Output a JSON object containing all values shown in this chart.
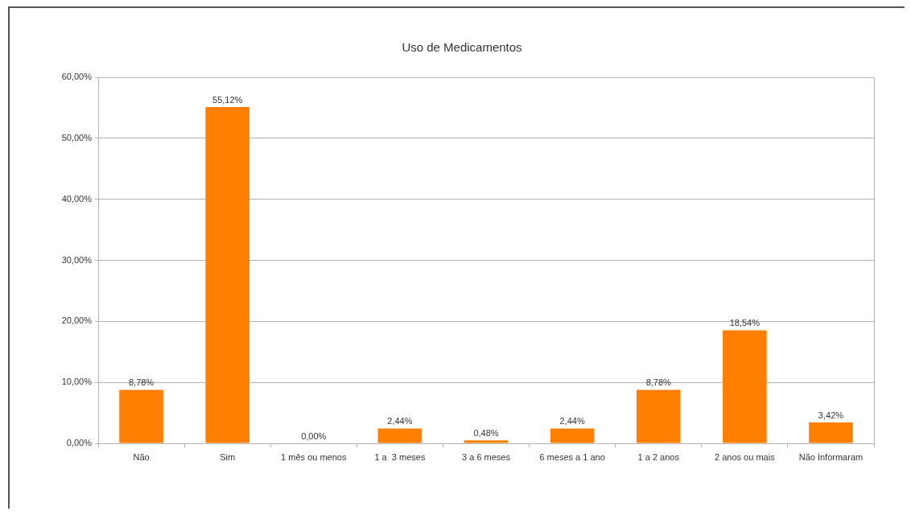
{
  "chart_data": {
    "type": "bar",
    "title": "Uso de Medicamentos",
    "categories": [
      "Não",
      "Sim",
      "1 mês ou menos",
      "1 a  3 meses",
      "3 a 6 meses",
      "6 meses a 1 ano",
      "1 a 2 anos",
      "2 anos ou mais",
      "Não Informaram"
    ],
    "values": [
      8.78,
      55.12,
      0,
      2.44,
      0.48,
      2.44,
      8.78,
      18.54,
      3.42
    ],
    "value_labels": [
      "8,78%",
      "55,12%",
      "0,00%",
      "2,44%",
      "0,48%",
      "2,44%",
      "8,78%",
      "18,54%",
      "3,42%"
    ],
    "color": "#ff8000",
    "ylim": [
      0,
      60
    ],
    "yticks": [
      {
        "value": 0,
        "label": "0,00%"
      },
      {
        "value": 10,
        "label": "10,00%"
      },
      {
        "value": 20,
        "label": "20,00%"
      },
      {
        "value": 30,
        "label": "30,00%"
      },
      {
        "value": 40,
        "label": "40,00%"
      },
      {
        "value": 50,
        "label": "50,00%"
      },
      {
        "value": 60,
        "label": "60,00%"
      }
    ],
    "grid": "y"
  }
}
